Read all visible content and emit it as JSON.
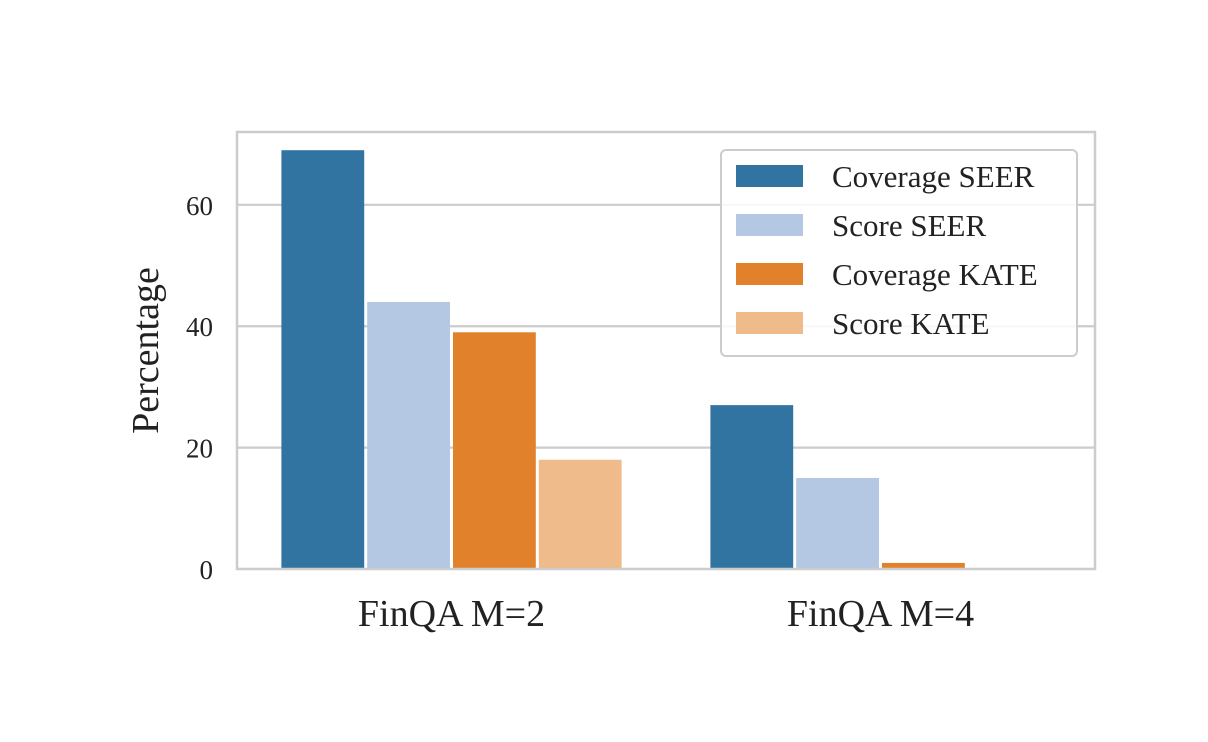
{
  "chart_data": {
    "type": "bar",
    "title": "",
    "xlabel": "",
    "ylabel": "Percentage",
    "categories": [
      "FinQA M=2",
      "FinQA M=4"
    ],
    "ylim": [
      0,
      72
    ],
    "yticks": [
      0,
      20,
      40,
      60
    ],
    "grid": true,
    "legend_position": "top-right",
    "series": [
      {
        "name": "Coverage SEER",
        "color": "#3274a1",
        "values": [
          69,
          27
        ]
      },
      {
        "name": "Score SEER",
        "color": "#b4c8e3",
        "values": [
          44,
          15
        ]
      },
      {
        "name": "Coverage KATE",
        "color": "#e1812c",
        "values": [
          39,
          1
        ]
      },
      {
        "name": "Score KATE",
        "color": "#efbb8a",
        "values": [
          18,
          0
        ]
      }
    ]
  }
}
